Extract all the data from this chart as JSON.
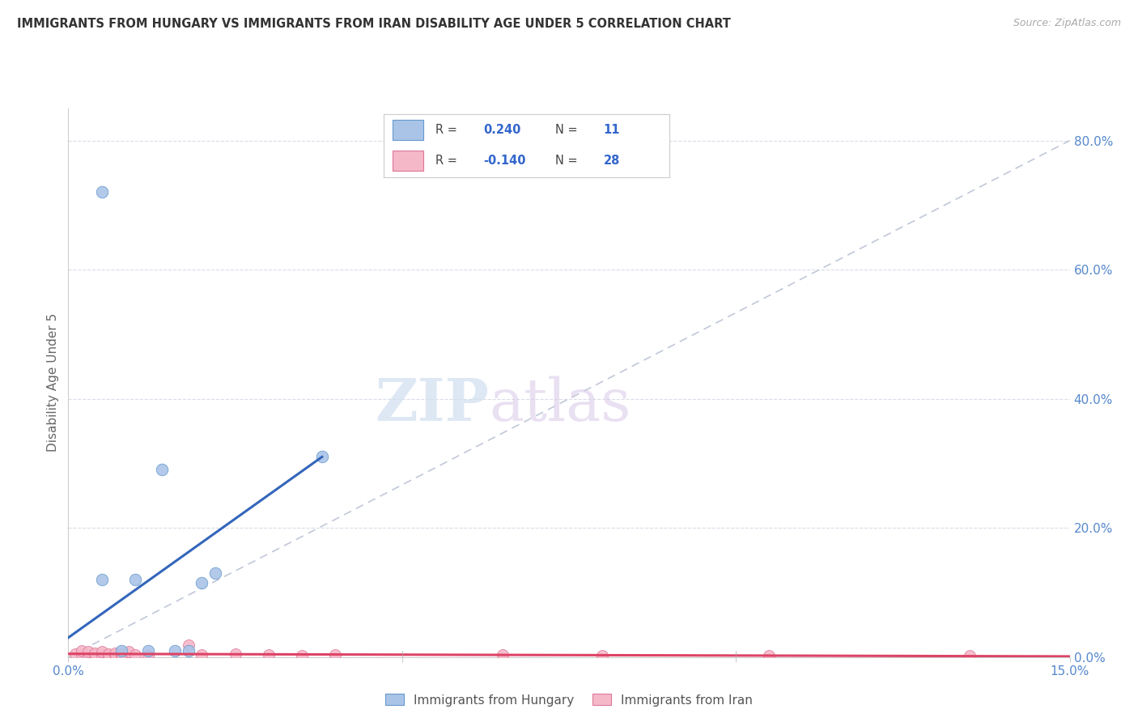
{
  "title": "IMMIGRANTS FROM HUNGARY VS IMMIGRANTS FROM IRAN DISABILITY AGE UNDER 5 CORRELATION CHART",
  "source": "Source: ZipAtlas.com",
  "ylabel": "Disability Age Under 5",
  "xlim": [
    0.0,
    0.15
  ],
  "ylim": [
    0.0,
    0.85
  ],
  "right_yticks": [
    0.0,
    0.2,
    0.4,
    0.6,
    0.8
  ],
  "right_yticklabels": [
    "0.0%",
    "20.0%",
    "40.0%",
    "60.0%",
    "80.0%"
  ],
  "hungary_R": 0.24,
  "hungary_N": 11,
  "iran_R": -0.14,
  "iran_N": 28,
  "hungary_color": "#aac4e8",
  "hungary_edge_color": "#6699cc",
  "hungary_line_color": "#3366bb",
  "iran_color": "#f5b8c8",
  "iran_edge_color": "#dd7799",
  "iran_line_color": "#dd4466",
  "diagonal_color": "#c0c8d8",
  "watermark_zip": "ZIP",
  "watermark_atlas": "atlas",
  "hungary_x": [
    0.005,
    0.005,
    0.008,
    0.01,
    0.012,
    0.014,
    0.016,
    0.018,
    0.02,
    0.022,
    0.038
  ],
  "hungary_y": [
    0.12,
    0.72,
    0.01,
    0.12,
    0.01,
    0.29,
    0.01,
    0.01,
    0.115,
    0.13,
    0.31
  ],
  "iran_x": [
    0.001,
    0.002,
    0.002,
    0.003,
    0.003,
    0.004,
    0.004,
    0.005,
    0.005,
    0.006,
    0.006,
    0.007,
    0.007,
    0.008,
    0.008,
    0.009,
    0.01,
    0.012,
    0.018,
    0.02,
    0.025,
    0.03,
    0.035,
    0.04,
    0.065,
    0.08,
    0.105,
    0.135
  ],
  "iran_y": [
    0.005,
    0.003,
    0.01,
    0.002,
    0.008,
    0.003,
    0.006,
    0.003,
    0.008,
    0.002,
    0.005,
    0.003,
    0.006,
    0.002,
    0.005,
    0.008,
    0.003,
    0.002,
    0.018,
    0.003,
    0.005,
    0.003,
    0.002,
    0.003,
    0.003,
    0.002,
    0.002,
    0.002
  ],
  "grid_color": "#d8dce8",
  "background_color": "#ffffff",
  "legend_hungary": "Immigrants from Hungary",
  "legend_iran": "Immigrants from Iran",
  "hungary_line_x0": 0.0,
  "hungary_line_y0": 0.03,
  "hungary_line_x1": 0.038,
  "hungary_line_y1": 0.31,
  "iran_line_x0": 0.0,
  "iran_line_y0": 0.005,
  "iran_line_x1": 0.15,
  "iran_line_y1": 0.001
}
